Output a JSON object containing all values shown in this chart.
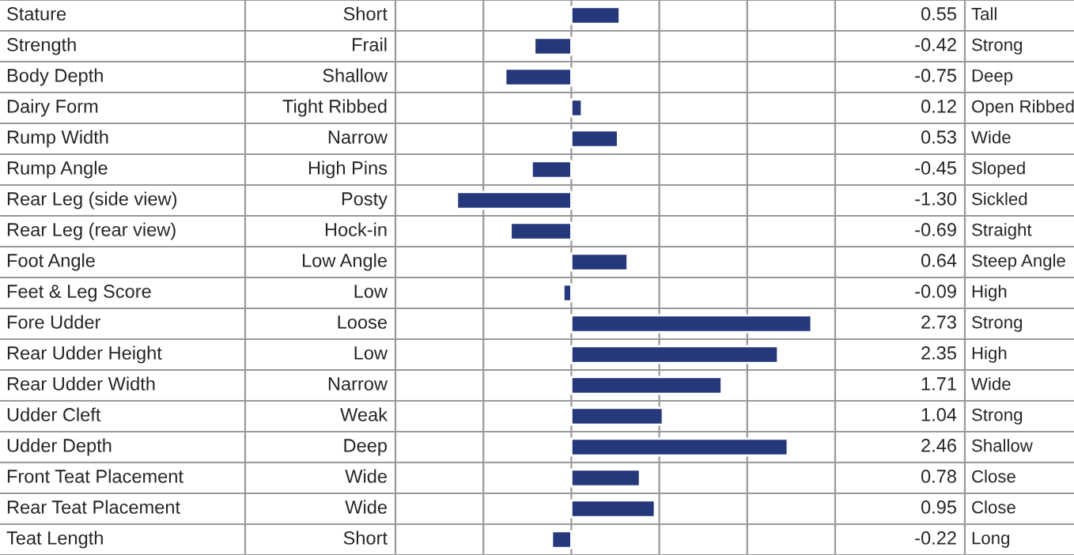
{
  "chart_data": {
    "type": "bar",
    "orientation": "horizontal",
    "categories": [
      "Stature",
      "Strength",
      "Body Depth",
      "Dairy Form",
      "Rump Width",
      "Rump Angle",
      "Rear Leg (side view)",
      "Rear Leg (rear view)",
      "Foot Angle",
      "Feet & Leg Score",
      "Fore Udder",
      "Rear Udder Height",
      "Rear Udder Width",
      "Udder Cleft",
      "Udder Depth",
      "Front Teat Placement",
      "Rear Teat Placement",
      "Teat Length"
    ],
    "values": [
      0.55,
      -0.42,
      -0.75,
      0.12,
      0.53,
      -0.45,
      -1.3,
      -0.69,
      0.64,
      -0.09,
      2.73,
      2.35,
      1.71,
      1.04,
      2.46,
      0.78,
      0.95,
      -0.22
    ],
    "value_labels": [
      "0.55",
      "-0.42",
      "-0.75",
      "0.12",
      "0.53",
      "-0.45",
      "-1.30",
      "-0.69",
      "0.64",
      "-0.09",
      "2.73",
      "2.35",
      "1.71",
      "1.04",
      "2.46",
      "0.78",
      "0.95",
      "-0.22"
    ],
    "color": "#26387c",
    "xlim": [
      -2,
      3
    ],
    "xticks": [
      {
        "value": -1,
        "label": null
      },
      {
        "value": 0,
        "label": null
      },
      {
        "value": 1,
        "label": null
      },
      {
        "value": 2,
        "label": null
      }
    ],
    "grid": "x",
    "annotations": [
      "Short",
      "Frail",
      "Shallow",
      "Tight Ribbed",
      "Narrow",
      "High Pins",
      "Posty",
      "Hock-in",
      "Low Angle",
      "Low",
      "Loose",
      "Low",
      "Narrow",
      "Weak",
      "Deep",
      "Wide",
      "Wide",
      "Short",
      "Tall",
      "Strong",
      "Deep",
      "Open Ribbed",
      "Wide",
      "Sloped",
      "Sickled",
      "Straight",
      "Steep Angle",
      "High",
      "Strong",
      "High",
      "Wide",
      "Strong",
      "Shallow",
      "Close",
      "Close",
      "Long"
    ]
  }
}
